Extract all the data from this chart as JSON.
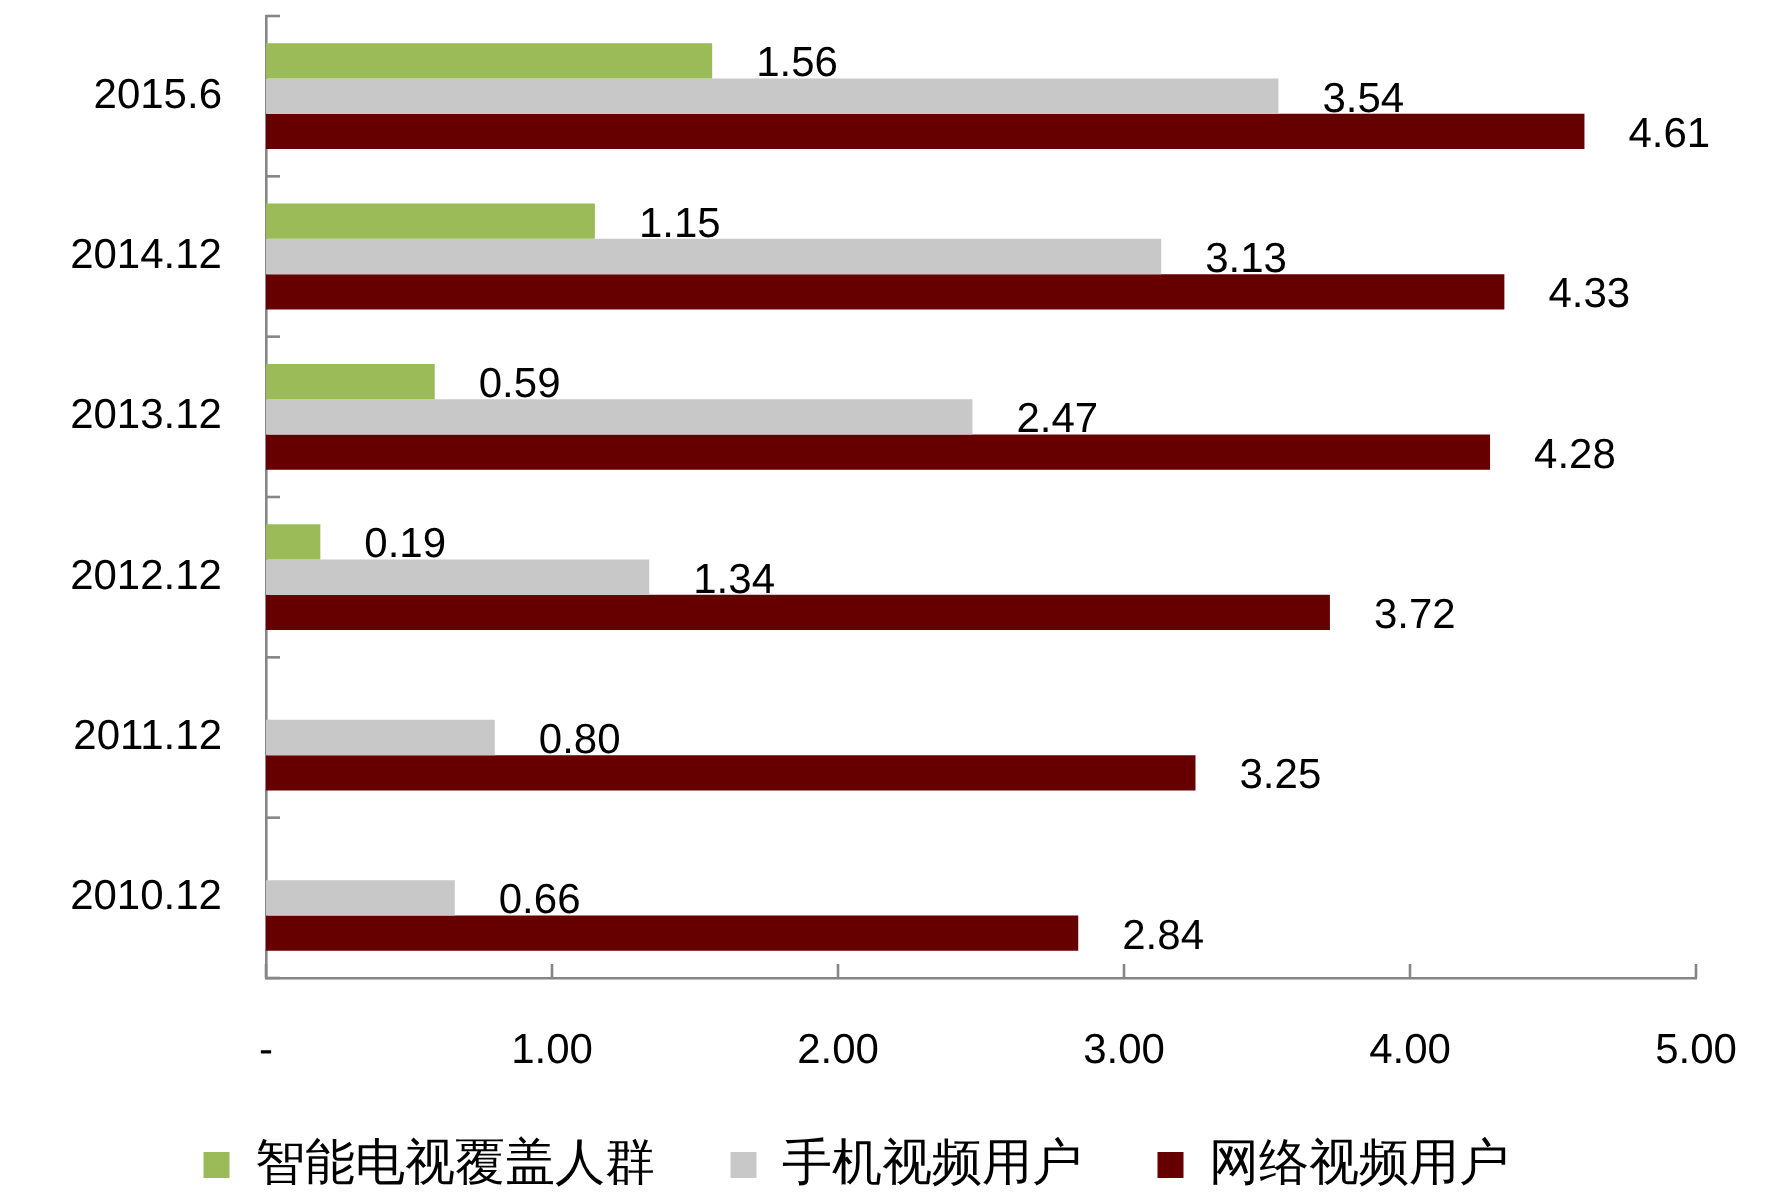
{
  "chart_data": {
    "type": "bar",
    "orientation": "horizontal",
    "categories": [
      "2015.6",
      "2014.12",
      "2013.12",
      "2012.12",
      "2011.12",
      "2010.12"
    ],
    "series": [
      {
        "name": "智能电视覆盖人群",
        "color": "#9bbb59",
        "values": [
          1.56,
          1.15,
          0.59,
          0.19,
          null,
          null
        ],
        "value_labels": [
          "1.56",
          "1.15",
          "0.59",
          "0.19",
          null,
          null
        ]
      },
      {
        "name": "手机视频用户",
        "color": "#c8c8c8",
        "values": [
          3.54,
          3.13,
          2.47,
          1.34,
          0.8,
          0.66
        ],
        "value_labels": [
          "3.54",
          "3.13",
          "2.47",
          "1.34",
          "0.80",
          "0.66"
        ]
      },
      {
        "name": "网络视频用户",
        "color": "#660000",
        "values": [
          4.61,
          4.33,
          4.28,
          3.72,
          3.25,
          2.84
        ],
        "value_labels": [
          "4.61",
          "4.33",
          "4.28",
          "3.72",
          "3.25",
          "2.84"
        ]
      }
    ],
    "xlim": [
      0,
      5
    ],
    "xticks": [
      {
        "value": 0,
        "label": "-"
      },
      {
        "value": 1,
        "label": "1.00"
      },
      {
        "value": 2,
        "label": "2.00"
      },
      {
        "value": 3,
        "label": "3.00"
      },
      {
        "value": 4,
        "label": "4.00"
      },
      {
        "value": 5,
        "label": "5.00"
      }
    ],
    "legend": "bottom"
  }
}
